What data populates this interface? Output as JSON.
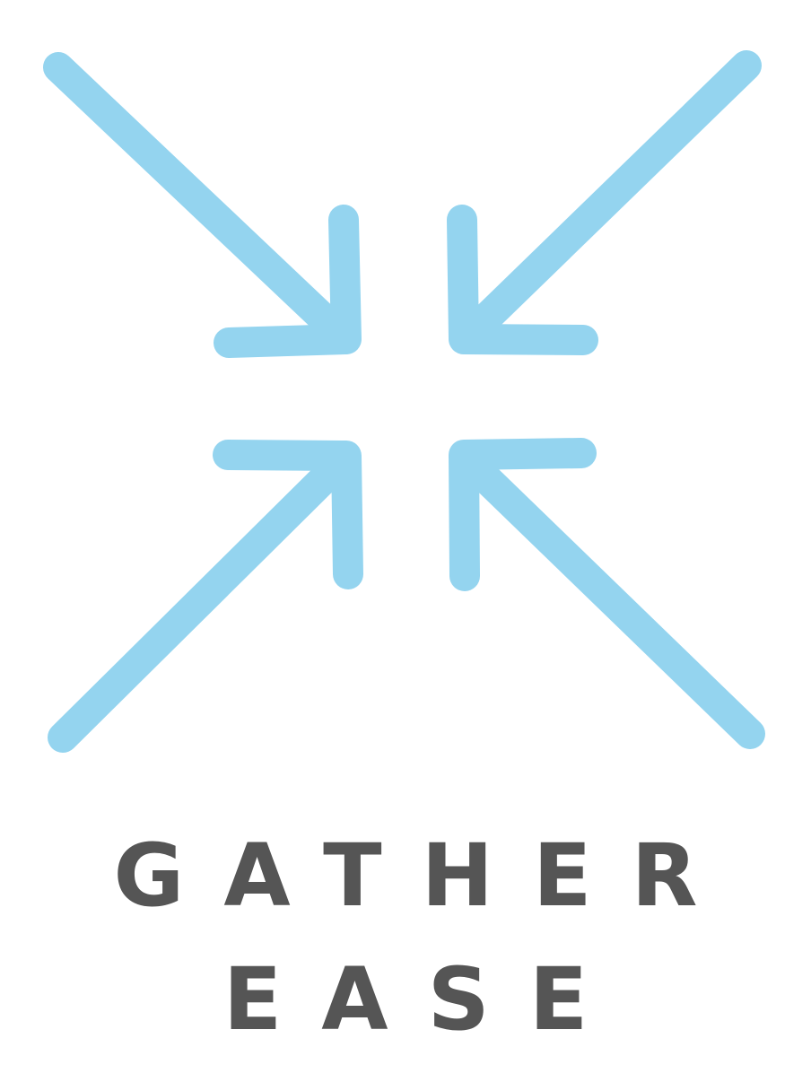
{
  "logo": {
    "accent_color": "#94d4ef",
    "text_color": "#555555",
    "icon": "arrows-converging-icon",
    "wordmark_line_1": "GATHER",
    "wordmark_line_2": "EASE"
  }
}
